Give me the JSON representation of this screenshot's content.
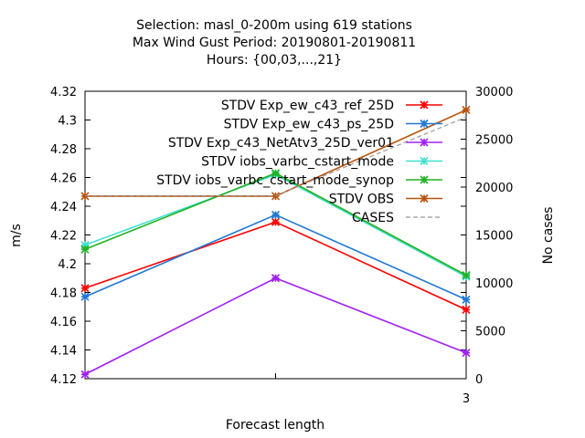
{
  "title": {
    "line1": "Selection: masl_0-200m using   619 stations",
    "line2": "Max Wind Gust   Period: 20190801-20190811",
    "line3": "Hours: {00,03,...,21}"
  },
  "chart_data": {
    "type": "line",
    "xlabel": "Forecast length",
    "ylabel": "m/s",
    "y2label": "No cases",
    "x": [
      0,
      1.5,
      3
    ],
    "x_tick_labels": [
      "",
      "",
      "3"
    ],
    "xlim": [
      0,
      3
    ],
    "ylim": [
      4.12,
      4.32
    ],
    "y_ticks": [
      "4.12",
      "4.14",
      "4.16",
      "4.18",
      "4.2",
      "4.22",
      "4.24",
      "4.26",
      "4.28",
      "4.3",
      "4.32"
    ],
    "y2lim": [
      0,
      30000
    ],
    "y2_ticks": [
      "0",
      "5000",
      "10000",
      "15000",
      "20000",
      "25000",
      "30000"
    ],
    "grid": false,
    "legend_position": "top-right",
    "series": [
      {
        "name": "STDV Exp_ew_c43_ref_25D",
        "color": "#ff0000",
        "marker": "x-cross",
        "axis": "y",
        "values": [
          4.183,
          4.229,
          4.168
        ]
      },
      {
        "name": "STDV Exp_ew_c43_ps_25D",
        "color": "#1f77d4",
        "marker": "x-cross",
        "axis": "y",
        "values": [
          4.177,
          4.234,
          4.175
        ]
      },
      {
        "name": "STDV Exp_c43_NetAtv3_25D_ver01",
        "color": "#a020f0",
        "marker": "x-cross",
        "axis": "y",
        "values": [
          4.123,
          4.19,
          4.138
        ]
      },
      {
        "name": "STDV iobs_varbc_cstart_mode",
        "color": "#40e0d0",
        "marker": "x-cross",
        "axis": "y",
        "values": [
          4.213,
          4.262,
          4.191
        ]
      },
      {
        "name": "STDV iobs_varbc_cstart_mode_synop",
        "color": "#22b222",
        "marker": "x-cross",
        "axis": "y",
        "values": [
          4.21,
          4.263,
          4.192
        ]
      },
      {
        "name": "STDV OBS",
        "color": "#b8520b",
        "marker": "x-cross",
        "axis": "y",
        "values": [
          4.247,
          4.247,
          4.307
        ]
      },
      {
        "name": "CASES",
        "color": "#999999",
        "marker": "none",
        "dash": true,
        "axis": "y2",
        "values": [
          19100,
          19100,
          27300
        ]
      }
    ]
  }
}
